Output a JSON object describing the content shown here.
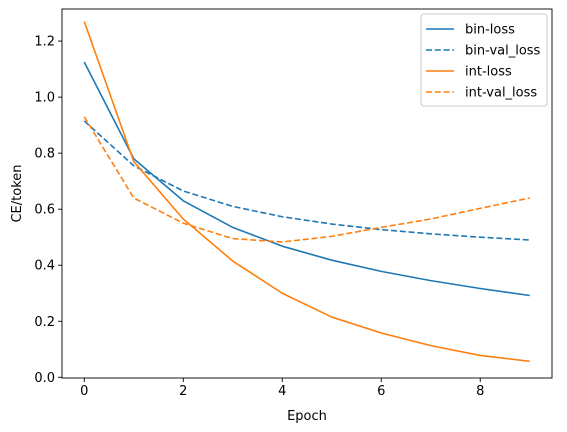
{
  "chart_data": {
    "type": "line",
    "xlabel": "Epoch",
    "ylabel": "CE/token",
    "xlim": [
      -0.45,
      9.45
    ],
    "ylim": [
      -0.0025,
      1.3145
    ],
    "xticks": [
      0,
      2,
      4,
      6,
      8
    ],
    "yticks": [
      0.0,
      0.2,
      0.4,
      0.6,
      0.8,
      1.0,
      1.2
    ],
    "grid": false,
    "legend_position": "top-right",
    "x": [
      0,
      1,
      2,
      3,
      4,
      5,
      6,
      7,
      8,
      9
    ],
    "series": [
      {
        "name": "bin-loss",
        "color": "#1f77b4",
        "dash": "solid",
        "values": [
          1.125,
          0.78,
          0.63,
          0.535,
          0.468,
          0.418,
          0.378,
          0.345,
          0.317,
          0.292
        ]
      },
      {
        "name": "bin-val_loss",
        "color": "#1f77b4",
        "dash": "dashed",
        "values": [
          0.915,
          0.755,
          0.665,
          0.61,
          0.573,
          0.547,
          0.527,
          0.512,
          0.5,
          0.49
        ]
      },
      {
        "name": "int-loss",
        "color": "#ff7f0e",
        "dash": "solid",
        "values": [
          1.27,
          0.77,
          0.565,
          0.415,
          0.3,
          0.215,
          0.158,
          0.113,
          0.078,
          0.057
        ]
      },
      {
        "name": "int-val_loss",
        "color": "#ff7f0e",
        "dash": "dashed",
        "values": [
          0.93,
          0.64,
          0.55,
          0.495,
          0.483,
          0.503,
          0.535,
          0.565,
          0.603,
          0.64
        ]
      }
    ]
  }
}
